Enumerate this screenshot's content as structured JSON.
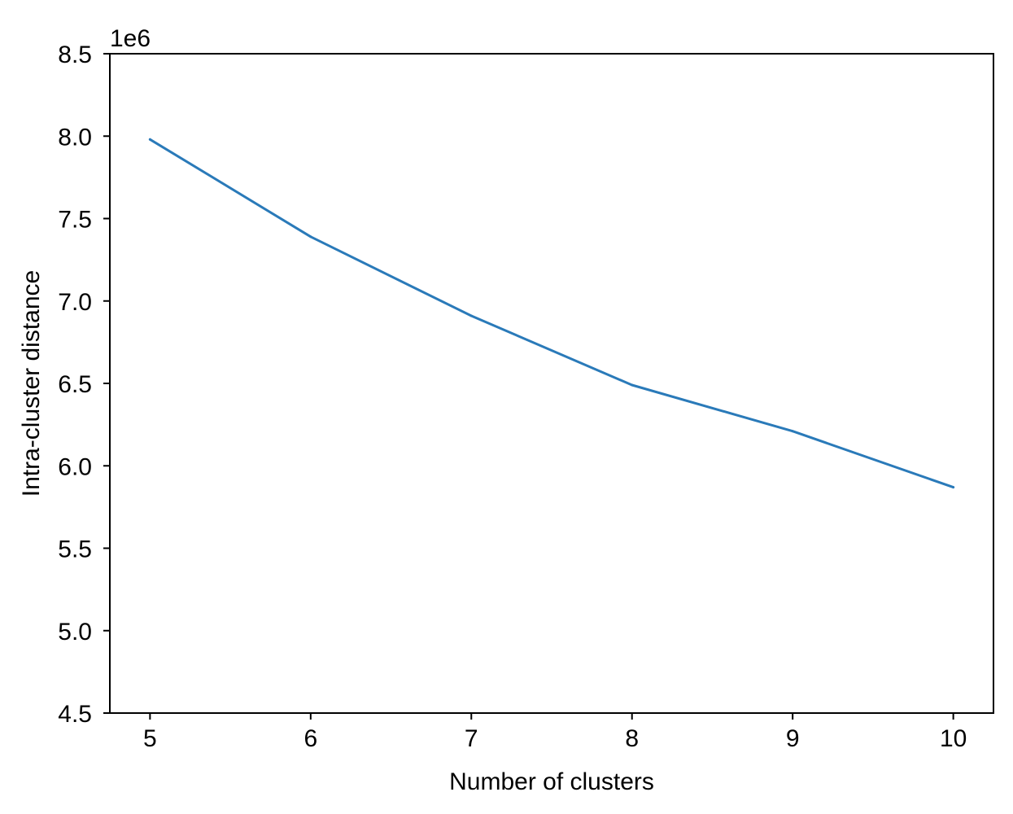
{
  "chart_data": {
    "type": "line",
    "title": "",
    "xlabel": "Number of clusters",
    "ylabel": "Intra-cluster distance",
    "y_offset_label": "1e6",
    "xlim": [
      4.75,
      10.25
    ],
    "ylim": [
      4.5,
      8.5
    ],
    "x_ticks": [
      5,
      6,
      7,
      8,
      9,
      10
    ],
    "x_tick_labels": [
      "5",
      "6",
      "7",
      "8",
      "9",
      "10"
    ],
    "y_ticks": [
      4.5,
      5.0,
      5.5,
      6.0,
      6.5,
      7.0,
      7.5,
      8.0,
      8.5
    ],
    "y_tick_labels": [
      "4.5",
      "5.0",
      "5.5",
      "6.0",
      "6.5",
      "7.0",
      "7.5",
      "8.0",
      "8.5"
    ],
    "grid": false,
    "legend": "none",
    "series": [
      {
        "color": "#2a7ab9",
        "x": [
          5,
          6,
          7,
          8,
          9,
          10
        ],
        "y": [
          7.98,
          7.39,
          6.91,
          6.49,
          6.21,
          5.87
        ]
      }
    ]
  }
}
